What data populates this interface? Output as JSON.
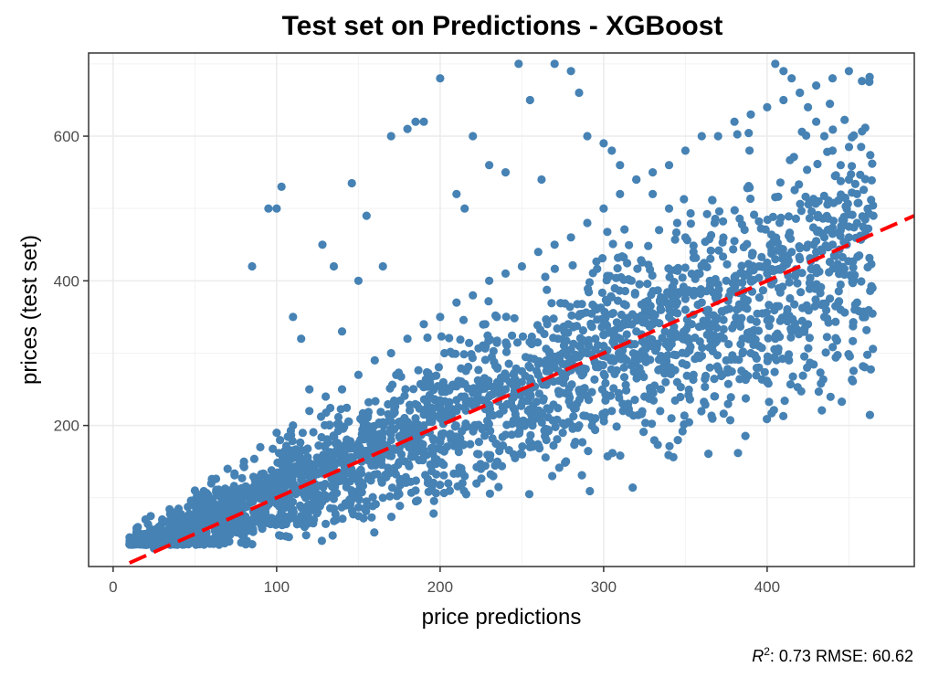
{
  "chart_data": {
    "type": "scatter",
    "title": "Test set on Predictions - XGBoost",
    "xlabel": "price predictions",
    "ylabel": "prices (test set)",
    "xlim": [
      -15,
      490
    ],
    "ylim": [
      5,
      715
    ],
    "x_ticks": [
      0,
      100,
      200,
      300,
      400
    ],
    "x_tick_labels": [
      "0",
      "100",
      "200",
      "300",
      "400"
    ],
    "y_ticks": [
      200,
      400,
      600
    ],
    "y_tick_labels": [
      "200",
      "400",
      "600"
    ],
    "grid": true,
    "point_color": "#4682B4",
    "reference_line": {
      "type": "dashed",
      "color": "#FF0000",
      "x": [
        10,
        490
      ],
      "y": [
        10,
        490
      ]
    },
    "caption": {
      "r2_symbol": "R",
      "r2_exp": "2",
      "text": ": 0.73 RMSE: 60.62"
    },
    "series": [
      {
        "x": [
          12,
          15,
          18,
          20,
          22,
          25,
          28,
          30,
          33,
          35,
          38,
          40,
          42,
          45,
          48,
          50,
          52,
          55,
          58,
          60,
          62,
          65,
          68,
          70,
          72,
          75,
          78,
          80,
          82,
          85,
          88,
          90,
          92,
          95,
          98,
          100,
          105,
          110,
          115,
          120,
          125,
          130,
          135,
          140,
          145,
          150,
          155,
          160,
          165,
          170,
          175,
          180,
          185,
          190,
          195,
          200,
          205,
          210,
          215,
          220,
          225,
          230,
          235,
          240,
          245,
          250,
          255,
          260,
          265,
          270,
          275,
          280,
          285,
          290,
          295,
          300,
          305,
          310,
          315,
          320,
          325,
          330,
          335,
          340,
          345,
          350,
          355,
          360,
          365,
          370,
          375,
          380,
          385,
          390,
          395,
          400,
          405,
          410,
          415,
          420,
          425,
          430,
          435,
          440,
          445,
          450,
          455,
          460,
          465,
          20,
          25,
          30,
          35,
          40,
          45,
          50,
          55,
          60,
          65,
          70,
          75,
          80,
          85,
          90,
          95,
          100,
          105,
          110,
          115,
          120,
          125,
          130,
          135,
          140,
          145,
          150,
          155,
          160,
          165,
          170,
          175,
          180,
          185,
          190,
          195,
          200,
          205,
          210,
          215,
          220,
          225,
          230,
          235,
          240,
          245,
          250,
          255,
          260,
          265,
          270,
          275,
          280,
          285,
          290,
          295,
          300,
          310,
          320,
          330,
          340,
          350,
          360,
          370,
          380,
          390,
          400,
          410,
          420,
          430,
          440,
          450,
          30,
          40,
          50,
          60,
          70,
          80,
          90,
          100,
          110,
          120,
          130,
          140,
          150,
          160,
          170,
          180,
          190,
          200,
          210,
          220,
          230,
          240,
          250,
          260,
          270,
          280,
          290,
          300,
          310,
          320,
          330,
          340,
          350,
          360,
          370,
          380,
          390,
          400,
          410,
          420,
          430,
          440,
          450,
          25,
          35,
          45,
          55,
          65,
          75,
          85,
          95,
          105,
          115,
          125,
          135,
          145,
          155,
          165,
          175,
          185,
          195,
          205,
          215,
          225,
          235,
          245,
          255,
          265,
          275,
          285,
          295,
          305,
          315,
          325,
          335,
          345,
          355,
          365,
          375,
          385,
          395,
          405,
          415,
          425,
          435,
          445,
          455,
          85,
          95,
          100,
          103,
          110,
          115,
          120,
          128,
          135,
          140,
          146,
          150,
          155,
          165,
          170,
          180,
          185,
          190,
          200,
          210,
          215,
          220,
          230,
          240,
          248,
          255,
          262,
          270,
          280,
          285,
          290,
          300,
          305,
          310,
          320,
          330,
          340,
          345,
          350,
          355,
          360,
          365,
          370,
          375,
          380,
          385,
          390,
          395,
          400,
          405,
          410,
          415,
          420,
          425,
          430,
          435,
          440,
          445,
          450,
          455
        ],
        "y": [
          40,
          42,
          45,
          40,
          50,
          48,
          60,
          55,
          52,
          58,
          62,
          65,
          60,
          70,
          68,
          72,
          75,
          80,
          78,
          85,
          82,
          90,
          88,
          95,
          92,
          100,
          98,
          105,
          102,
          110,
          108,
          115,
          112,
          120,
          118,
          125,
          130,
          135,
          140,
          148,
          150,
          158,
          160,
          168,
          170,
          175,
          182,
          185,
          190,
          195,
          200,
          205,
          210,
          215,
          220,
          225,
          230,
          235,
          240,
          245,
          250,
          255,
          260,
          265,
          270,
          275,
          280,
          285,
          290,
          295,
          300,
          305,
          310,
          315,
          320,
          325,
          330,
          335,
          340,
          345,
          350,
          355,
          360,
          365,
          370,
          375,
          380,
          385,
          390,
          395,
          400,
          405,
          410,
          415,
          420,
          425,
          430,
          435,
          440,
          445,
          450,
          455,
          460,
          465,
          470,
          475,
          480,
          485,
          490,
          35,
          38,
          40,
          45,
          50,
          55,
          60,
          65,
          70,
          75,
          80,
          85,
          90,
          95,
          100,
          105,
          110,
          115,
          120,
          125,
          130,
          135,
          140,
          145,
          150,
          155,
          160,
          165,
          170,
          175,
          180,
          185,
          190,
          195,
          200,
          205,
          210,
          215,
          220,
          225,
          230,
          235,
          240,
          245,
          250,
          255,
          260,
          265,
          270,
          275,
          280,
          285,
          290,
          295,
          300,
          305,
          310,
          320,
          330,
          340,
          350,
          360,
          370,
          380,
          390,
          400,
          410,
          420,
          430,
          440,
          450,
          460,
          70,
          85,
          110,
          120,
          140,
          150,
          170,
          190,
          200,
          220,
          240,
          250,
          270,
          290,
          300,
          320,
          340,
          350,
          370,
          380,
          400,
          410,
          420,
          440,
          450,
          460,
          480,
          500,
          520,
          540,
          550,
          560,
          580,
          600,
          600,
          620,
          630,
          640,
          650,
          660,
          670,
          680,
          690,
          30,
          35,
          40,
          45,
          50,
          55,
          60,
          65,
          70,
          75,
          80,
          85,
          90,
          95,
          100,
          105,
          110,
          115,
          120,
          130,
          140,
          150,
          160,
          170,
          180,
          190,
          200,
          210,
          220,
          230,
          240,
          250,
          260,
          270,
          280,
          290,
          300,
          310,
          320,
          330,
          340,
          350,
          360,
          370,
          420,
          500,
          500,
          530,
          350,
          320,
          250,
          450,
          420,
          330,
          535,
          400,
          490,
          420,
          600,
          610,
          620,
          620,
          680,
          520,
          500,
          600,
          560,
          550,
          700,
          650,
          540,
          700,
          690,
          660,
          600,
          590,
          580,
          560,
          540,
          520,
          500,
          480,
          460,
          440,
          420,
          400,
          380,
          360,
          340,
          320,
          300,
          280,
          260,
          700,
          690,
          680,
          660,
          640,
          620,
          600,
          580,
          560,
          540,
          520
        ]
      }
    ]
  }
}
